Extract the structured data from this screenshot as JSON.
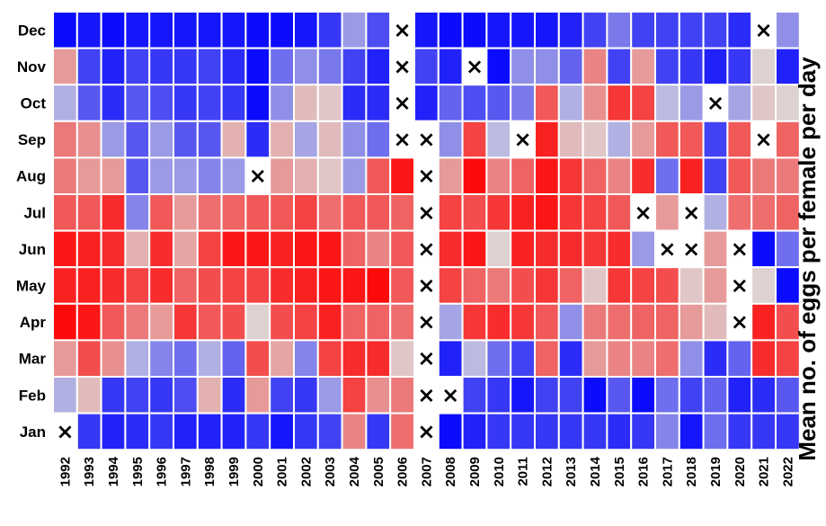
{
  "chart_data": {
    "type": "heatmap",
    "title": "",
    "xlabel": "",
    "ylabel": "Mean no. of eggs per female per day",
    "x": [
      "1992",
      "1993",
      "1994",
      "1995",
      "1996",
      "1997",
      "1998",
      "1999",
      "2000",
      "2001",
      "2002",
      "2003",
      "2004",
      "2005",
      "2006",
      "2007",
      "2008",
      "2009",
      "2010",
      "2011",
      "2012",
      "2013",
      "2014",
      "2015",
      "2016",
      "2017",
      "2018",
      "2019",
      "2020",
      "2021",
      "2022"
    ],
    "y": [
      "Dec",
      "Nov",
      "Oct",
      "Sep",
      "Aug",
      "Jul",
      "Jun",
      "May",
      "Apr",
      "Mar",
      "Feb",
      "Jan"
    ],
    "value_scale": "relative (-1 = low/blue, 0 = neutral/grey, +1 = high/red)",
    "missing_marker": "×",
    "colorscale": {
      "low": "#0000ff",
      "mid": "#dcdcdc",
      "high": "#ff0000"
    },
    "values": [
      [
        -0.95,
        -0.9,
        -0.95,
        -0.9,
        -0.9,
        -0.9,
        -0.9,
        -0.9,
        -0.95,
        -0.95,
        -0.9,
        -0.75,
        -0.3,
        -0.65,
        null,
        -0.9,
        -0.95,
        -0.95,
        -0.9,
        -0.9,
        -0.9,
        -0.85,
        -0.7,
        -0.45,
        -0.7,
        -0.7,
        -0.7,
        -0.7,
        -0.8,
        null,
        -0.35
      ],
      [
        0.3,
        -0.7,
        -0.85,
        -0.7,
        -0.75,
        -0.75,
        -0.7,
        -0.8,
        -0.95,
        -0.5,
        -0.35,
        -0.45,
        -0.7,
        -0.85,
        null,
        -0.7,
        -0.85,
        null,
        -0.95,
        -0.35,
        -0.35,
        -0.55,
        0.4,
        -0.7,
        0.3,
        -0.7,
        -0.75,
        -0.85,
        -0.75,
        0.05,
        -0.85
      ],
      [
        -0.2,
        -0.6,
        -0.8,
        -0.6,
        -0.65,
        -0.75,
        -0.7,
        -0.75,
        -0.95,
        -0.35,
        0.15,
        0.1,
        -0.8,
        -0.8,
        null,
        -0.85,
        -0.55,
        -0.65,
        -0.6,
        -0.45,
        0.6,
        -0.2,
        0.35,
        0.75,
        0.7,
        -0.15,
        -0.3,
        null,
        -0.25,
        0.1,
        0.05
      ],
      [
        0.45,
        0.35,
        -0.3,
        -0.6,
        -0.3,
        -0.6,
        -0.6,
        0.2,
        -0.8,
        0.2,
        -0.25,
        0.15,
        -0.35,
        -0.5,
        null,
        null,
        -0.35,
        0.7,
        -0.15,
        null,
        0.85,
        0.15,
        0.1,
        -0.2,
        0.3,
        0.6,
        0.6,
        -0.7,
        0.6,
        null,
        0.55
      ],
      [
        0.45,
        0.3,
        0.3,
        -0.6,
        -0.3,
        -0.3,
        -0.4,
        -0.3,
        null,
        0.3,
        0.2,
        0.1,
        -0.3,
        0.6,
        0.9,
        null,
        0.3,
        0.95,
        0.4,
        0.55,
        0.9,
        0.75,
        0.55,
        0.4,
        0.8,
        -0.5,
        0.85,
        -0.7,
        0.6,
        0.45,
        0.45
      ],
      [
        0.6,
        0.6,
        0.8,
        -0.4,
        0.6,
        0.3,
        0.5,
        0.55,
        0.6,
        0.6,
        0.7,
        0.5,
        0.6,
        0.6,
        0.55,
        null,
        0.7,
        0.65,
        0.75,
        0.85,
        0.9,
        0.75,
        0.7,
        0.6,
        null,
        0.3,
        null,
        -0.2,
        0.5,
        0.5,
        0.55
      ],
      [
        0.9,
        0.85,
        0.8,
        0.2,
        0.8,
        0.25,
        0.7,
        0.9,
        0.9,
        0.85,
        0.9,
        0.9,
        0.55,
        0.4,
        0.6,
        null,
        0.8,
        0.9,
        0.05,
        0.85,
        0.8,
        0.8,
        0.75,
        0.8,
        -0.3,
        null,
        null,
        0.3,
        null,
        -0.95,
        -0.5
      ],
      [
        0.85,
        0.85,
        0.8,
        0.7,
        0.8,
        0.55,
        0.65,
        0.7,
        0.7,
        0.8,
        0.85,
        0.9,
        0.9,
        0.95,
        0.6,
        null,
        0.7,
        0.55,
        0.45,
        0.65,
        0.75,
        0.55,
        0.1,
        0.75,
        0.7,
        0.65,
        0.1,
        0.3,
        null,
        0.05,
        -0.95
      ],
      [
        0.95,
        0.9,
        0.6,
        0.45,
        0.3,
        0.75,
        0.6,
        0.65,
        0.05,
        0.65,
        0.7,
        0.85,
        0.55,
        0.55,
        0.5,
        null,
        -0.25,
        0.75,
        0.8,
        0.75,
        0.6,
        -0.35,
        0.45,
        0.5,
        0.55,
        0.55,
        0.3,
        0.15,
        null,
        0.85,
        0.65
      ],
      [
        0.3,
        0.65,
        0.35,
        -0.2,
        -0.4,
        -0.5,
        -0.2,
        -0.55,
        0.65,
        0.25,
        -0.4,
        0.7,
        0.8,
        0.8,
        0.1,
        null,
        -0.85,
        -0.15,
        -0.5,
        -0.7,
        0.55,
        -0.8,
        0.3,
        0.4,
        0.4,
        0.5,
        -0.35,
        -0.8,
        -0.55,
        0.8,
        0.7
      ],
      [
        -0.2,
        0.15,
        -0.75,
        -0.7,
        -0.75,
        -0.65,
        0.2,
        -0.8,
        0.3,
        -0.7,
        -0.75,
        -0.3,
        0.7,
        0.35,
        0.45,
        null,
        null,
        -0.7,
        -0.75,
        -0.9,
        -0.7,
        -0.7,
        -0.95,
        -0.6,
        -0.95,
        -0.5,
        -0.7,
        -0.55,
        -0.85,
        -0.8,
        -0.6
      ],
      [
        null,
        -0.75,
        -0.85,
        -0.8,
        -0.75,
        -0.85,
        -0.85,
        -0.85,
        -0.75,
        -0.9,
        -0.75,
        -0.7,
        0.4,
        -0.75,
        0.5,
        null,
        -0.95,
        -0.85,
        -0.75,
        -0.75,
        -0.75,
        -0.75,
        -0.75,
        -0.8,
        -0.75,
        -0.4,
        -0.9,
        -0.5,
        -0.75,
        -0.75,
        -0.75
      ]
    ]
  }
}
